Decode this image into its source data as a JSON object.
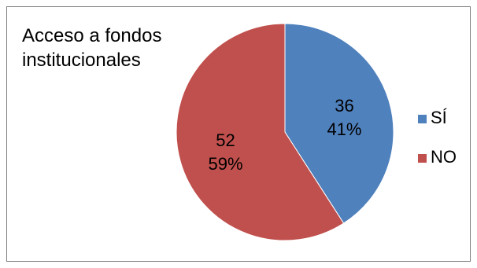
{
  "chart_data": {
    "type": "pie",
    "title": "Acceso a fondos institucionales",
    "categories": [
      "SÍ",
      "NO"
    ],
    "values": [
      36,
      52
    ],
    "percent_labels": [
      "41%",
      "59%"
    ],
    "colors": [
      "#4f81bd",
      "#c0504d"
    ],
    "start_angle_deg": 0,
    "direction": "clockwise",
    "legend_position": "right"
  }
}
